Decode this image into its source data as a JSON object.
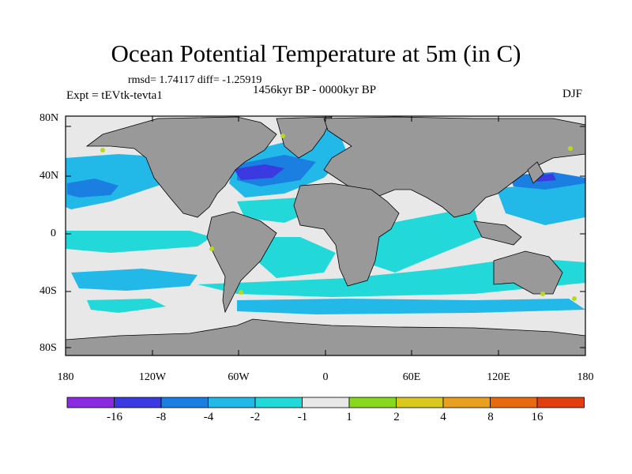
{
  "title": "Ocean Potential Temperature at 5m (in C)",
  "stats": "rmsd= 1.74117 diff= -1.25919",
  "period": "1456kyr BP - 0000kyr BP",
  "experiment": "Expt = tEVtk-tevta1",
  "season": "DJF",
  "lat_labels": [
    "80N",
    "40N",
    "0",
    "40S",
    "80S"
  ],
  "lon_labels": [
    "180",
    "120W",
    "60W",
    "0",
    "60E",
    "120E",
    "180"
  ],
  "colorbar": {
    "labels": [
      "-16",
      "-8",
      "-4",
      "-2",
      "-1",
      "1",
      "2",
      "4",
      "8",
      "16"
    ],
    "colors": [
      "#8a2be2",
      "#3a3ae0",
      "#1a7fe0",
      "#22b8e8",
      "#22d8d8",
      "#e8e8e8",
      "#88d820",
      "#d8c820",
      "#e8a020",
      "#e86a10",
      "#e04010"
    ]
  },
  "map_colors": {
    "land": "#999999",
    "neutral": "#e8e8e8",
    "light_cyan": "#22d8d8",
    "sky": "#22b8e8",
    "blue": "#1a7fe0",
    "dark_blue": "#3a3ae0",
    "warm": "#b8d820"
  }
}
